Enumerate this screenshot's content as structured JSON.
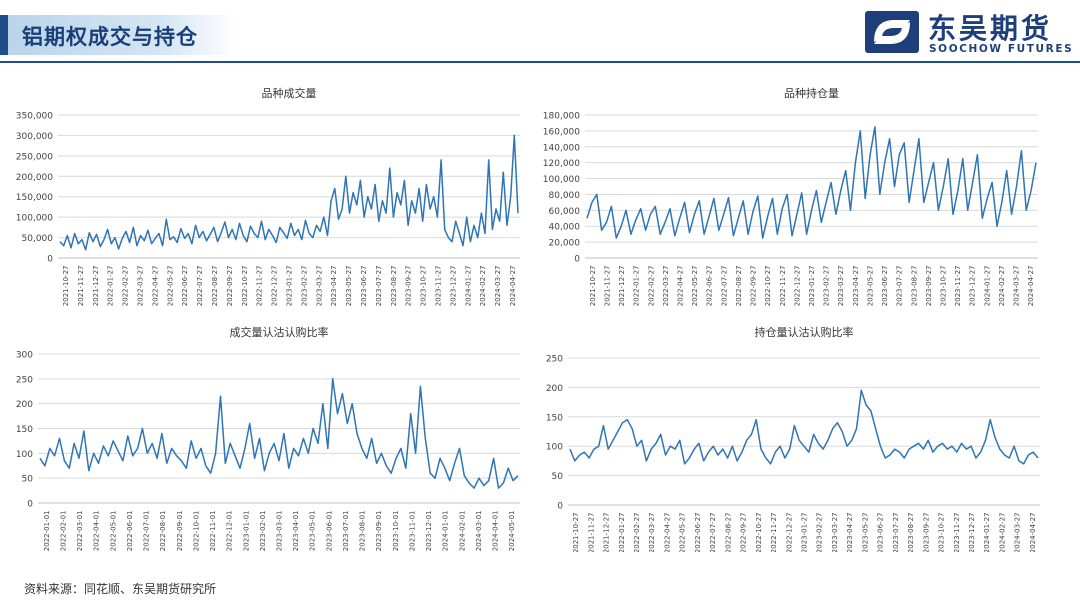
{
  "header": {
    "title": "铝期权成交与持仓",
    "brand_cn": "东吴期货",
    "brand_en": "SOOCHOW FUTURES",
    "logo_icon": "soochow-logo-icon",
    "accent_color": "#1f4e8c"
  },
  "source": "资料来源：同花顺、东吴期货研究所",
  "chart_data": [
    {
      "id": "volume",
      "type": "line",
      "title": "品种成交量",
      "color": "#2e75b6",
      "ylim": [
        0,
        350000
      ],
      "yticks": [
        0,
        50000,
        100000,
        150000,
        200000,
        250000,
        300000,
        350000
      ],
      "ytick_labels": [
        "0",
        "50,000",
        "100,000",
        "150,000",
        "200,000",
        "250,000",
        "300,000",
        "350,000"
      ],
      "xticks": [
        "2021-10-27",
        "2021-11-27",
        "2021-12-27",
        "2022-01-27",
        "2022-02-27",
        "2022-03-27",
        "2022-04-27",
        "2022-05-27",
        "2022-06-27",
        "2022-07-27",
        "2022-08-27",
        "2022-09-27",
        "2022-10-27",
        "2022-11-27",
        "2022-12-27",
        "2023-01-27",
        "2023-02-27",
        "2023-03-27",
        "2023-04-27",
        "2023-05-27",
        "2023-06-27",
        "2023-07-27",
        "2023-08-27",
        "2023-09-27",
        "2023-10-27",
        "2023-11-27",
        "2023-12-27",
        "2024-01-27",
        "2024-02-27",
        "2024-03-27",
        "2024-04-27"
      ],
      "series": [
        {
          "values": [
            40000,
            30000,
            55000,
            25000,
            60000,
            35000,
            45000,
            20000,
            62000,
            40000,
            58000,
            28000,
            45000,
            70000,
            35000,
            50000,
            22000,
            48000,
            65000,
            38000,
            75000,
            30000,
            55000,
            42000,
            68000,
            35000,
            48000,
            60000,
            30000,
            95000,
            45000,
            52000,
            38000,
            72000,
            48000,
            60000,
            35000,
            80000,
            50000,
            65000,
            42000,
            58000,
            75000,
            40000,
            62000,
            88000,
            50000,
            70000,
            45000,
            85000,
            55000,
            40000,
            78000,
            60000,
            50000,
            90000,
            45000,
            70000,
            55000,
            38000,
            75000,
            62000,
            48000,
            85000,
            55000,
            70000,
            45000,
            92000,
            60000,
            50000,
            80000,
            65000,
            100000,
            55000,
            140000,
            170000,
            95000,
            120000,
            200000,
            110000,
            160000,
            130000,
            190000,
            100000,
            150000,
            120000,
            180000,
            90000,
            140000,
            110000,
            220000,
            100000,
            160000,
            130000,
            190000,
            80000,
            140000,
            110000,
            170000,
            90000,
            180000,
            120000,
            150000,
            100000,
            240000,
            70000,
            50000,
            40000,
            90000,
            60000,
            30000,
            100000,
            40000,
            80000,
            50000,
            110000,
            60000,
            240000,
            70000,
            120000,
            90000,
            210000,
            80000,
            150000,
            300000,
            110000
          ]
        }
      ]
    },
    {
      "id": "open_interest",
      "type": "line",
      "title": "品种持仓量",
      "color": "#2e75b6",
      "ylim": [
        0,
        180000
      ],
      "yticks": [
        0,
        20000,
        40000,
        60000,
        80000,
        100000,
        120000,
        140000,
        160000,
        180000
      ],
      "ytick_labels": [
        "0",
        "20,000",
        "40,000",
        "60,000",
        "80,000",
        "100,000",
        "120,000",
        "140,000",
        "160,000",
        "180,000"
      ],
      "xticks": [
        "2021-10-27",
        "2021-11-27",
        "2021-12-27",
        "2022-01-27",
        "2022-02-27",
        "2022-03-27",
        "2022-04-27",
        "2022-05-27",
        "2022-06-27",
        "2022-07-27",
        "2022-08-27",
        "2022-09-27",
        "2022-10-27",
        "2022-11-27",
        "2022-12-27",
        "2023-01-27",
        "2023-02-27",
        "2023-03-27",
        "2023-04-27",
        "2023-05-27",
        "2023-06-27",
        "2023-07-27",
        "2023-08-27",
        "2023-09-27",
        "2023-10-27",
        "2023-11-27",
        "2023-12-27",
        "2024-01-27",
        "2024-02-27",
        "2024-03-27",
        "2024-04-27"
      ],
      "series": [
        {
          "values": [
            50000,
            70000,
            80000,
            35000,
            45000,
            65000,
            25000,
            40000,
            60000,
            30000,
            48000,
            62000,
            35000,
            55000,
            65000,
            30000,
            45000,
            62000,
            28000,
            50000,
            70000,
            32000,
            55000,
            72000,
            30000,
            52000,
            75000,
            35000,
            55000,
            76000,
            28000,
            50000,
            72000,
            30000,
            58000,
            78000,
            25000,
            52000,
            75000,
            30000,
            62000,
            80000,
            28000,
            55000,
            82000,
            30000,
            60000,
            85000,
            45000,
            70000,
            95000,
            55000,
            85000,
            110000,
            60000,
            120000,
            160000,
            75000,
            130000,
            165000,
            80000,
            120000,
            150000,
            90000,
            130000,
            145000,
            70000,
            110000,
            150000,
            70000,
            95000,
            120000,
            60000,
            90000,
            125000,
            55000,
            85000,
            125000,
            60000,
            95000,
            130000,
            50000,
            75000,
            95000,
            40000,
            70000,
            110000,
            55000,
            90000,
            135000,
            60000,
            85000,
            120000
          ]
        }
      ]
    },
    {
      "id": "volume_pc_ratio",
      "type": "line",
      "title": "成交量认沽认购比率",
      "color": "#2e75b6",
      "ylim": [
        0,
        300
      ],
      "yticks": [
        0,
        50,
        100,
        150,
        200,
        250,
        300
      ],
      "ytick_labels": [
        "0",
        "50",
        "100",
        "150",
        "200",
        "250",
        "300"
      ],
      "xticks": [
        "2022-01-01",
        "2022-02-01",
        "2022-03-01",
        "2022-04-01",
        "2022-05-01",
        "2022-06-01",
        "2022-07-01",
        "2022-08-01",
        "2022-09-01",
        "2022-10-01",
        "2022-11-01",
        "2022-12-01",
        "2023-01-01",
        "2023-02-01",
        "2023-03-01",
        "2023-04-01",
        "2023-05-01",
        "2023-06-01",
        "2023-07-01",
        "2023-08-01",
        "2023-09-01",
        "2023-10-01",
        "2023-11-01",
        "2023-12-01",
        "2024-01-01",
        "2024-02-01",
        "2024-03-01",
        "2024-04-01",
        "2024-05-01"
      ],
      "series": [
        {
          "values": [
            90,
            75,
            110,
            95,
            130,
            85,
            70,
            120,
            90,
            145,
            65,
            100,
            80,
            115,
            95,
            125,
            105,
            85,
            135,
            95,
            110,
            150,
            100,
            120,
            90,
            140,
            80,
            110,
            95,
            85,
            70,
            125,
            90,
            110,
            75,
            60,
            100,
            215,
            80,
            120,
            95,
            70,
            110,
            160,
            90,
            130,
            65,
            100,
            120,
            85,
            140,
            70,
            110,
            95,
            130,
            100,
            150,
            120,
            200,
            110,
            250,
            180,
            220,
            160,
            200,
            140,
            110,
            90,
            130,
            80,
            100,
            75,
            60,
            90,
            110,
            70,
            180,
            100,
            235,
            130,
            60,
            50,
            90,
            70,
            45,
            80,
            110,
            55,
            40,
            30,
            50,
            35,
            45,
            90,
            30,
            40,
            70,
            45,
            55
          ]
        }
      ]
    },
    {
      "id": "oi_pc_ratio",
      "type": "line",
      "title": "持仓量认沽认购比率",
      "color": "#2e75b6",
      "ylim": [
        0,
        250
      ],
      "yticks": [
        0,
        50,
        100,
        150,
        200,
        250
      ],
      "ytick_labels": [
        "0",
        "50",
        "100",
        "150",
        "200",
        "250"
      ],
      "xticks": [
        "2021-10-27",
        "2021-11-27",
        "2021-12-27",
        "2022-01-27",
        "2022-02-27",
        "2022-03-27",
        "2022-04-27",
        "2022-05-27",
        "2022-06-27",
        "2022-07-27",
        "2022-08-27",
        "2022-09-27",
        "2022-10-27",
        "2022-11-27",
        "2022-12-27",
        "2023-01-27",
        "2023-02-27",
        "2023-03-27",
        "2023-04-27",
        "2023-05-27",
        "2023-06-27",
        "2023-07-27",
        "2023-08-27",
        "2023-09-27",
        "2023-10-27",
        "2023-11-27",
        "2023-12-27",
        "2024-01-27",
        "2024-02-27",
        "2024-03-27",
        "2024-04-27"
      ],
      "series": [
        {
          "values": [
            95,
            75,
            85,
            90,
            80,
            95,
            100,
            135,
            95,
            110,
            125,
            140,
            145,
            130,
            100,
            110,
            75,
            95,
            105,
            120,
            85,
            100,
            95,
            110,
            70,
            80,
            95,
            105,
            75,
            90,
            100,
            85,
            95,
            80,
            100,
            75,
            90,
            110,
            120,
            145,
            95,
            80,
            70,
            90,
            100,
            80,
            95,
            135,
            110,
            100,
            90,
            120,
            105,
            95,
            110,
            130,
            140,
            125,
            100,
            110,
            130,
            195,
            170,
            160,
            130,
            100,
            80,
            85,
            95,
            90,
            80,
            95,
            100,
            105,
            95,
            110,
            90,
            100,
            105,
            95,
            100,
            90,
            105,
            95,
            100,
            80,
            90,
            110,
            145,
            115,
            95,
            85,
            80,
            100,
            75,
            70,
            85,
            90,
            80
          ]
        }
      ]
    }
  ]
}
